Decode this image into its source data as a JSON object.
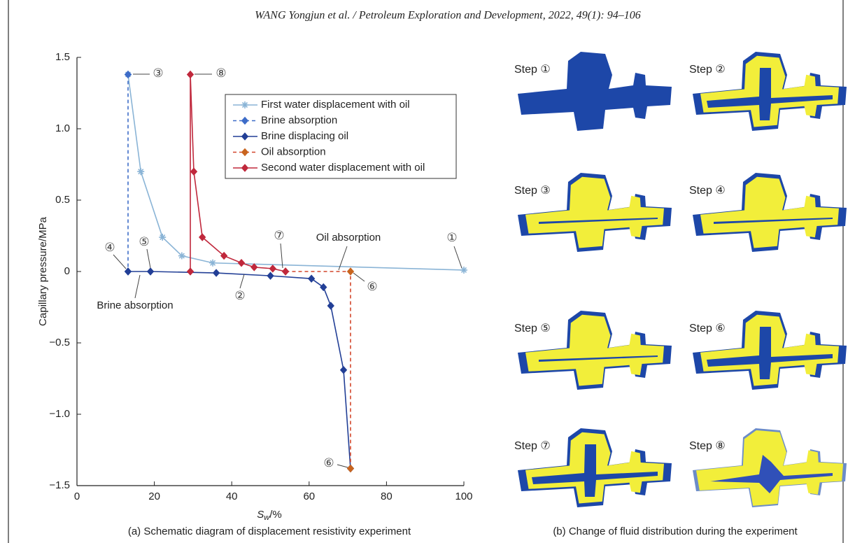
{
  "header": {
    "citation": "WANG Yongjun et al. / Petroleum Exploration and Development, 2022, 49(1): 94–106"
  },
  "chart_data": {
    "type": "line",
    "ylabel": "Capillary pressure/MPa",
    "xlabel_parts": [
      "S",
      "w",
      "/%"
    ],
    "xlim": [
      0,
      100
    ],
    "ylim": [
      -1.5,
      1.5
    ],
    "xticks": [
      0,
      20,
      40,
      60,
      80,
      100
    ],
    "yticks": [
      {
        "value": -1.5,
        "label": "−1.5"
      },
      {
        "value": -1,
        "label": "−1.0"
      },
      {
        "value": -0.5,
        "label": "−0.5"
      },
      0,
      0.5,
      {
        "value": 1,
        "label": "1.0"
      },
      1.5
    ],
    "legend": "upper right",
    "series": [
      {
        "name": "First water displacement with oil",
        "color": "#8ab4d6",
        "marker": "asterisk",
        "dashed": false,
        "x": [
          13.2,
          16.5,
          22.1,
          27.1,
          35.1,
          100
        ],
        "values": [
          1.38,
          0.7,
          0.24,
          0.11,
          0.06,
          0.01
        ]
      },
      {
        "name": "Brine absorption",
        "color": "#3d6cc8",
        "marker": "diamond",
        "dashed": true,
        "x": [
          13.2,
          13.2
        ],
        "values": [
          1.38,
          0
        ]
      },
      {
        "name": "Brine displacing oil",
        "color": "#223f96",
        "marker": "diamond",
        "dashed": false,
        "x": [
          13.2,
          19,
          36,
          50,
          60.6,
          63.7,
          65.6,
          68.9,
          70.7
        ],
        "values": [
          0,
          0,
          -0.01,
          -0.03,
          -0.05,
          -0.11,
          -0.24,
          -0.69,
          -1.38
        ]
      },
      {
        "name": "Oil absorption",
        "color": "#d2452a",
        "marker": "diamond",
        "marker_color": "#c8641e",
        "dashed": true,
        "x": [
          70.7,
          70.7,
          53.9
        ],
        "values": [
          -1.38,
          0,
          0
        ]
      },
      {
        "name": "Second water displacement with oil",
        "color": "#c0283c",
        "marker": "diamond",
        "dashed": false,
        "x": [
          29.3,
          29.3,
          30.2,
          32.4,
          38,
          42.5,
          45.8,
          50.6,
          53.9
        ],
        "values": [
          0,
          1.38,
          0.7,
          0.24,
          0.11,
          0.06,
          0.03,
          0.02,
          0
        ]
      }
    ],
    "annotations": [
      "③",
      "⑧",
      "④",
      "⑤",
      "⑦",
      "Oil absorption",
      "①",
      "②",
      "⑥",
      "Brine absorption",
      "⑥"
    ],
    "caption": "(a) Schematic diagram of displacement resistivity experiment"
  },
  "panel_b": {
    "caption": "(b) Change of fluid distribution during the experiment",
    "steps": [
      "Step ①",
      "Step ②",
      "Step ③",
      "Step ④",
      "Step ⑤",
      "Step ⑥",
      "Step ⑦",
      "Step ⑧"
    ]
  }
}
